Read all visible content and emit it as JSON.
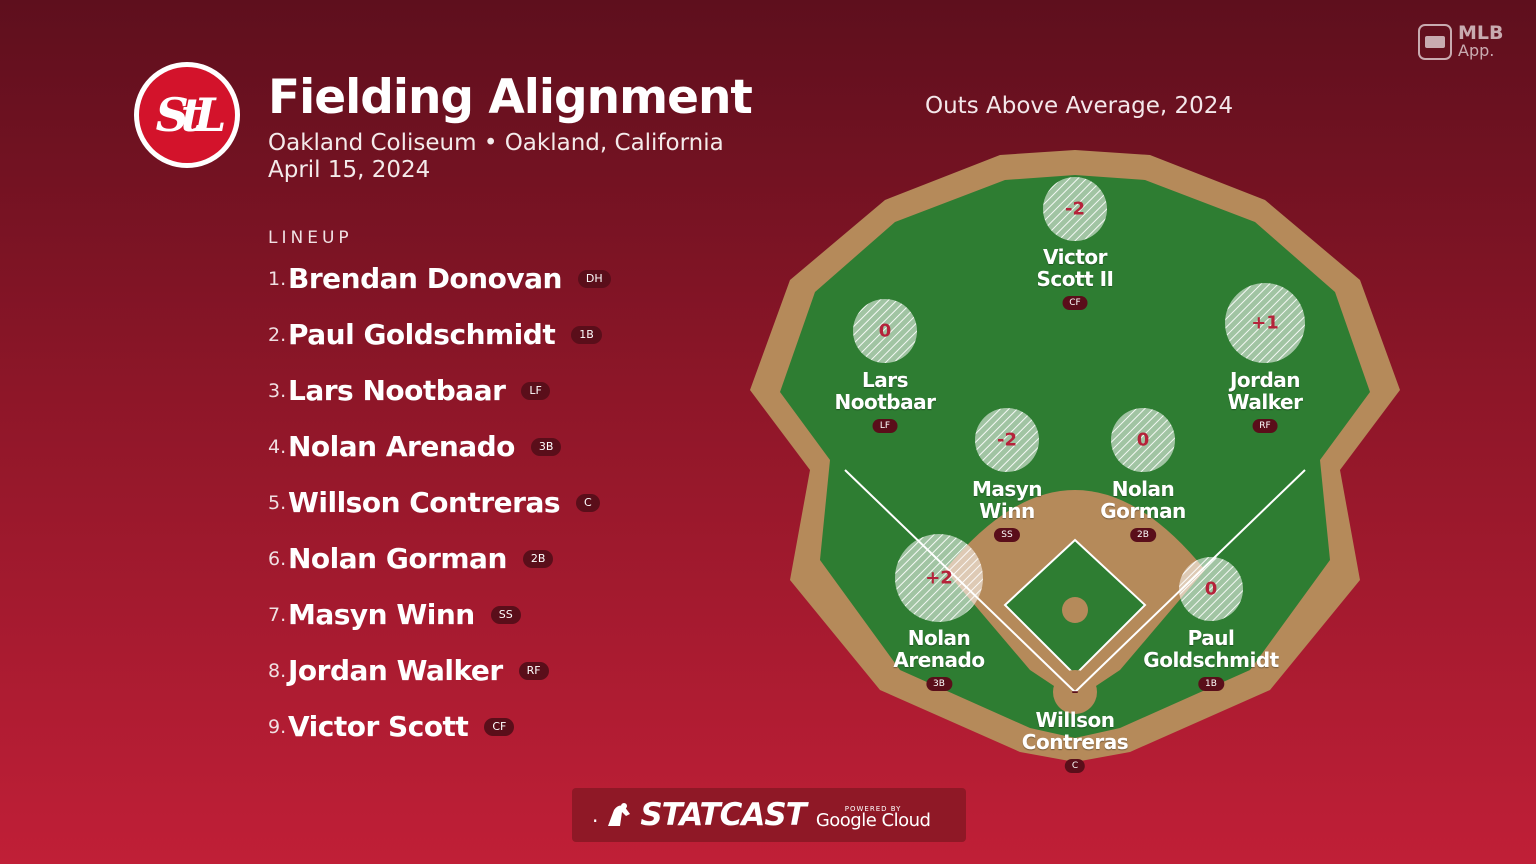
{
  "header": {
    "logo_text": "StL",
    "title": "Fielding Alignment",
    "subtitle": "Oakland Coliseum • Oakland, California",
    "date": "April 15, 2024"
  },
  "lineup": {
    "heading": "LINEUP",
    "items": [
      {
        "num": "1.",
        "name": "Brendan Donovan",
        "pos": "DH"
      },
      {
        "num": "2.",
        "name": "Paul Goldschmidt",
        "pos": "1B"
      },
      {
        "num": "3.",
        "name": "Lars Nootbaar",
        "pos": "LF"
      },
      {
        "num": "4.",
        "name": "Nolan Arenado",
        "pos": "3B"
      },
      {
        "num": "5.",
        "name": "Willson Contreras",
        "pos": "C"
      },
      {
        "num": "6.",
        "name": "Nolan Gorman",
        "pos": "2B"
      },
      {
        "num": "7.",
        "name": "Masyn Winn",
        "pos": "SS"
      },
      {
        "num": "8.",
        "name": "Jordan Walker",
        "pos": "RF"
      },
      {
        "num": "9.",
        "name": "Victor Scott",
        "pos": "CF"
      }
    ]
  },
  "field": {
    "title": "Outs Above Average, 2024",
    "players": [
      {
        "line1": "Victor",
        "line2": "Scott II",
        "pos": "CF",
        "oaa": "-2"
      },
      {
        "line1": "Lars",
        "line2": "Nootbaar",
        "pos": "LF",
        "oaa": "0"
      },
      {
        "line1": "Jordan",
        "line2": "Walker",
        "pos": "RF",
        "oaa": "+1"
      },
      {
        "line1": "Masyn",
        "line2": "Winn",
        "pos": "SS",
        "oaa": "-2"
      },
      {
        "line1": "Nolan",
        "line2": "Gorman",
        "pos": "2B",
        "oaa": "0"
      },
      {
        "line1": "Nolan",
        "line2": "Arenado",
        "pos": "3B",
        "oaa": "+2"
      },
      {
        "line1": "Paul",
        "line2": "Goldschmidt",
        "pos": "1B",
        "oaa": "0"
      },
      {
        "line1": "Willson",
        "line2": "Contreras",
        "pos": "C",
        "oaa": "–"
      }
    ]
  },
  "branding": {
    "mlb_line1": "MLB",
    "mlb_line2": "App.",
    "statcast_word": "STATCAST",
    "powered_by": "POWERED BY",
    "google": "Google Cloud"
  },
  "colors": {
    "grass": "#2e7d32",
    "dirt": "#b58a5a",
    "accent": "#c8102e"
  }
}
